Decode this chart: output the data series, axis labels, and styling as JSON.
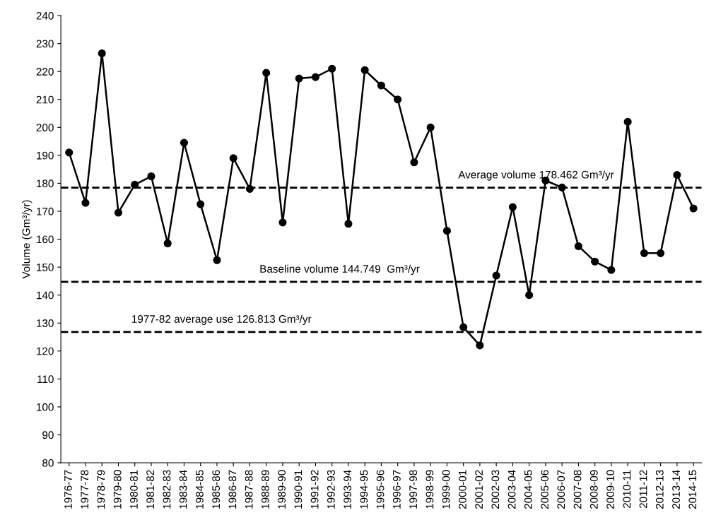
{
  "chart_data": {
    "type": "line",
    "ylabel": "Volume (Gm³/yr)",
    "categories": [
      "1976-77",
      "1977-78",
      "1978-79",
      "1979-80",
      "1980-81",
      "1981-82",
      "1982-83",
      "1983-84",
      "1984-85",
      "1985-86",
      "1986-87",
      "1987-88",
      "1988-89",
      "1989-90",
      "1990-91",
      "1991-92",
      "1992-93",
      "1993-94",
      "1994-95",
      "1995-96",
      "1996-97",
      "1997-98",
      "1998-99",
      "1999-00",
      "2000-01",
      "2001-02",
      "2002-03",
      "2003-04",
      "2004-05",
      "2005-06",
      "2006-07",
      "2007-08",
      "2008-09",
      "2009-10",
      "2010-11",
      "2011-12",
      "2012-13",
      "2013-14",
      "2014-15"
    ],
    "series": [
      {
        "color": "#000000",
        "values": [
          191,
          173,
          226.5,
          169.5,
          179.5,
          182.5,
          158.5,
          194.5,
          172.5,
          152.5,
          189,
          178,
          219.5,
          166,
          217.5,
          218,
          221,
          165.5,
          220.5,
          215,
          210,
          187.5,
          200,
          163,
          128.5,
          122,
          147,
          171.5,
          140,
          181,
          178.5,
          157.5,
          152,
          149,
          202,
          155,
          155,
          183,
          171
        ]
      }
    ],
    "marker": "circle",
    "line_style": "solid",
    "ylim": [
      80,
      240
    ],
    "yticks": [
      80,
      90,
      100,
      110,
      120,
      130,
      140,
      150,
      160,
      170,
      180,
      190,
      200,
      210,
      220,
      230,
      240
    ],
    "grid": false,
    "legend": false,
    "ref_lines": [
      {
        "axis": "y",
        "value": 178.462,
        "label": "Average volume 178.462 Gm³/yr",
        "color": "#000000",
        "line_style": "dashed"
      },
      {
        "axis": "y",
        "value": 144.749,
        "label": "Baseline volume 144.749  Gm³/yr",
        "color": "#000000",
        "line_style": "dashed"
      },
      {
        "axis": "y",
        "value": 126.813,
        "label": "1977-82 average use 126.813 Gm³/yr",
        "color": "#000000",
        "line_style": "dashed"
      }
    ]
  }
}
